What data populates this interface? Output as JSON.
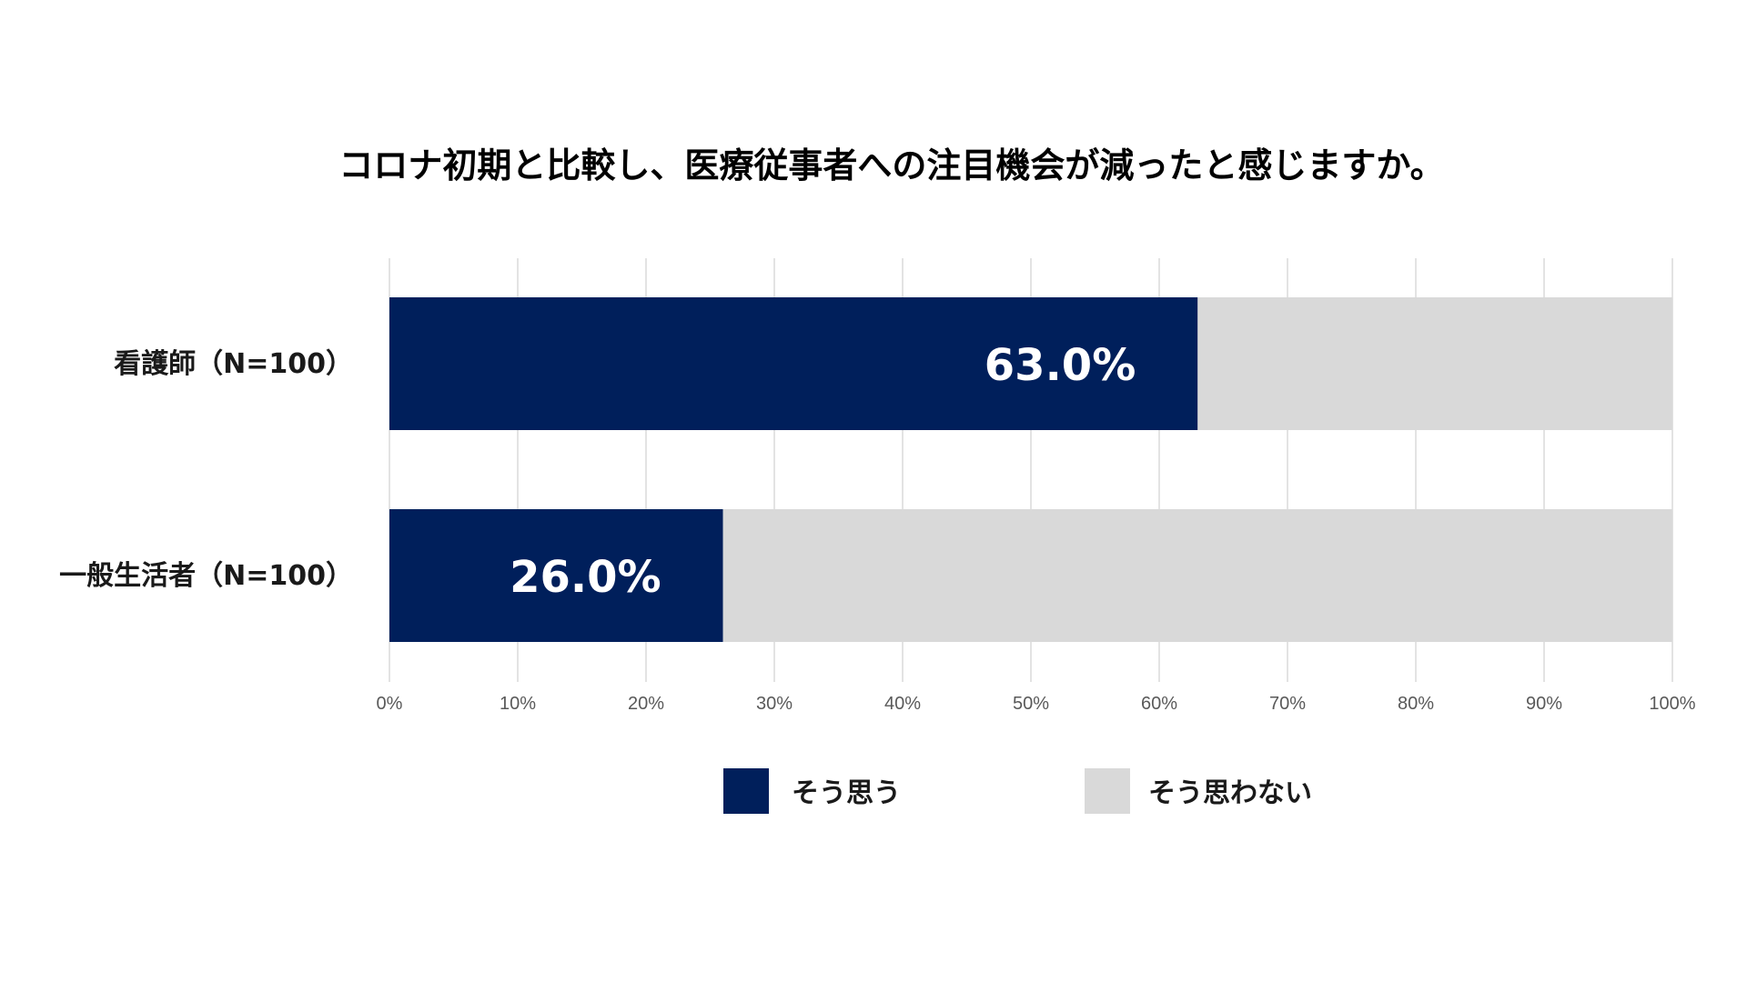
{
  "chart_data": {
    "type": "bar",
    "orientation": "horizontal",
    "stacked": true,
    "title": "コロナ初期と比較し、医療従事者への注目機会が減ったと感じますか。",
    "categories": [
      "看護師（N=100）",
      "一般生活者（N=100）"
    ],
    "series": [
      {
        "name": "そう思う",
        "values": [
          63.0,
          26.0
        ],
        "color": "#001f5b"
      },
      {
        "name": "そう思わない",
        "values": [
          37.0,
          74.0
        ],
        "color": "#d9d9d9"
      }
    ],
    "data_labels": [
      "63.0%",
      "26.0%"
    ],
    "xlim": [
      0,
      100
    ],
    "xticks": [
      0,
      10,
      20,
      30,
      40,
      50,
      60,
      70,
      80,
      90,
      100
    ],
    "xtick_labels": [
      "0%",
      "10%",
      "20%",
      "30%",
      "40%",
      "50%",
      "60%",
      "70%",
      "80%",
      "90%",
      "100%"
    ],
    "grid": "vertical",
    "legend": "bottom"
  }
}
